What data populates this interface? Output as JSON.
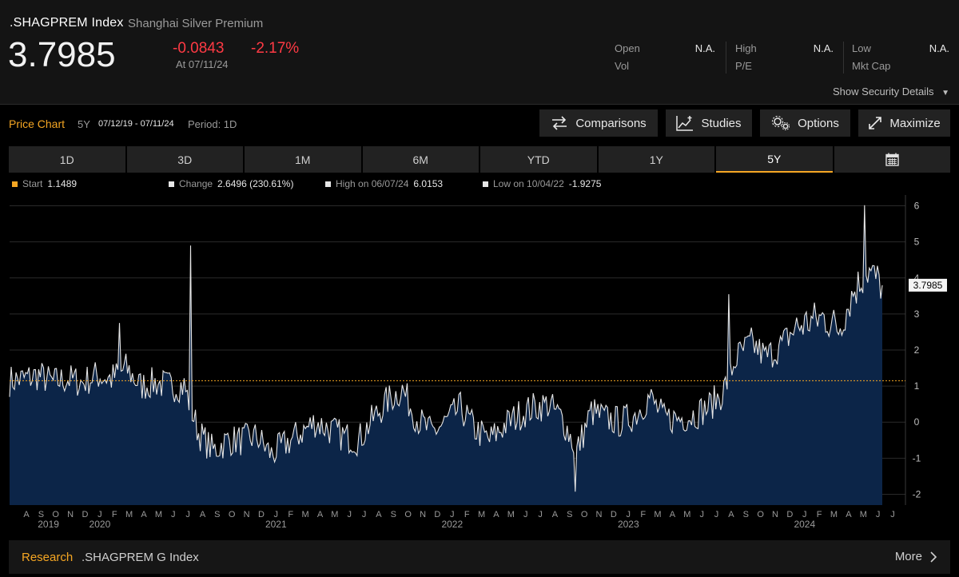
{
  "header": {
    "ticker": ".SHAGPREM Index",
    "security_name": "Shanghai Silver Premium",
    "last_price": "3.7985",
    "net_change": "-0.0843",
    "pct_change": "-2.17%",
    "as_of": "At 07/11/24",
    "stats": [
      {
        "label": "Open",
        "value": "N.A."
      },
      {
        "label": "Vol",
        "value": ""
      },
      {
        "label": "High",
        "value": "N.A."
      },
      {
        "label": "P/E",
        "value": ""
      },
      {
        "label": "Low",
        "value": "N.A."
      },
      {
        "label": "Mkt Cap",
        "value": ""
      }
    ],
    "show_details": "Show Security Details"
  },
  "toolbar": {
    "title": "Price Chart",
    "range": "5Y",
    "dates": "07/12/19 - 07/11/24",
    "period": "Period: 1D",
    "comparisons": "Comparisons",
    "studies": "Studies",
    "options": "Options",
    "maximize": "Maximize"
  },
  "tabs": [
    "1D",
    "3D",
    "1M",
    "6M",
    "YTD",
    "1Y",
    "5Y"
  ],
  "active_tab": "5Y",
  "legend": {
    "start_label": "Start",
    "start_value": "1.1489",
    "change_label": "Change",
    "change_value": "2.6496 (230.61%)",
    "high_label": "High on 06/07/24",
    "high_value": "6.0153",
    "low_label": "Low on 10/04/22",
    "low_value": "-1.9275"
  },
  "research": {
    "label": "Research",
    "text": ".SHAGPREM G Index",
    "more": "More"
  },
  "colors": {
    "accent": "#f5a623",
    "negative": "#ff3a44",
    "area_fill": "#0c2548",
    "line": "#e6e6e6"
  },
  "chart_data": {
    "type": "area",
    "x": [
      "2019-07",
      "2019-08",
      "2019-09",
      "2019-10",
      "2019-11",
      "2019-12",
      "2020-01",
      "2020-02",
      "2020-03",
      "2020-04",
      "2020-05",
      "2020-06",
      "2020-07",
      "2020-08",
      "2020-09",
      "2020-10",
      "2020-11",
      "2020-12",
      "2021-01",
      "2021-02",
      "2021-03",
      "2021-04",
      "2021-05",
      "2021-06",
      "2021-07",
      "2021-08",
      "2021-09",
      "2021-10",
      "2021-11",
      "2021-12",
      "2022-01",
      "2022-02",
      "2022-03",
      "2022-04",
      "2022-05",
      "2022-06",
      "2022-07",
      "2022-08",
      "2022-09",
      "2022-10",
      "2022-11",
      "2022-12",
      "2023-01",
      "2023-02",
      "2023-03",
      "2023-04",
      "2023-05",
      "2023-06",
      "2023-07",
      "2023-08",
      "2023-09",
      "2023-10",
      "2023-11",
      "2023-12",
      "2024-01",
      "2024-02",
      "2024-03",
      "2024-04",
      "2024-05",
      "2024-06",
      "2024-07"
    ],
    "values": [
      1.15,
      1.2,
      1.3,
      1.1,
      1.2,
      1.1,
      1.3,
      1.2,
      1.5,
      1.0,
      1.1,
      1.0,
      1.0,
      -0.3,
      -0.8,
      -0.5,
      -0.5,
      -0.4,
      -0.9,
      -0.6,
      -0.3,
      0.0,
      -0.2,
      -0.4,
      -0.5,
      0.1,
      0.6,
      0.9,
      0.1,
      -0.3,
      0.0,
      0.4,
      -0.2,
      -0.5,
      -0.1,
      0.2,
      0.4,
      0.5,
      0.1,
      -0.8,
      0.3,
      0.1,
      0.0,
      0.2,
      0.7,
      0.1,
      0.1,
      0.2,
      0.4,
      0.8,
      1.8,
      2.2,
      1.8,
      2.1,
      2.6,
      2.8,
      2.9,
      2.6,
      3.6,
      4.2,
      3.8
    ],
    "extremes": [
      {
        "x": "2024-06",
        "y": 6.0153
      },
      {
        "x": "2022-10",
        "y": -1.9275
      }
    ],
    "start_value": 1.1489,
    "last_value": 3.7985,
    "ylim": [
      -2.3,
      6.3
    ],
    "yticks": [
      -2,
      -1,
      0,
      1,
      2,
      3,
      4,
      5,
      6
    ],
    "month_labels": [
      "A",
      "S",
      "O",
      "N",
      "D",
      "J",
      "F",
      "M",
      "A",
      "M",
      "J",
      "J",
      "A",
      "S",
      "O",
      "N",
      "D",
      "J",
      "F",
      "M",
      "A",
      "M",
      "J",
      "J",
      "A",
      "S",
      "O",
      "N",
      "D",
      "J",
      "F",
      "M",
      "A",
      "M",
      "J",
      "J",
      "A",
      "S",
      "O",
      "N",
      "D",
      "J",
      "F",
      "M",
      "A",
      "M",
      "J",
      "J",
      "A",
      "S",
      "O",
      "N",
      "D",
      "J",
      "F",
      "M",
      "A",
      "M",
      "J",
      "J"
    ],
    "year_labels": [
      "2019",
      "2020",
      "2021",
      "2022",
      "2023",
      "2024"
    ],
    "grid": true
  }
}
